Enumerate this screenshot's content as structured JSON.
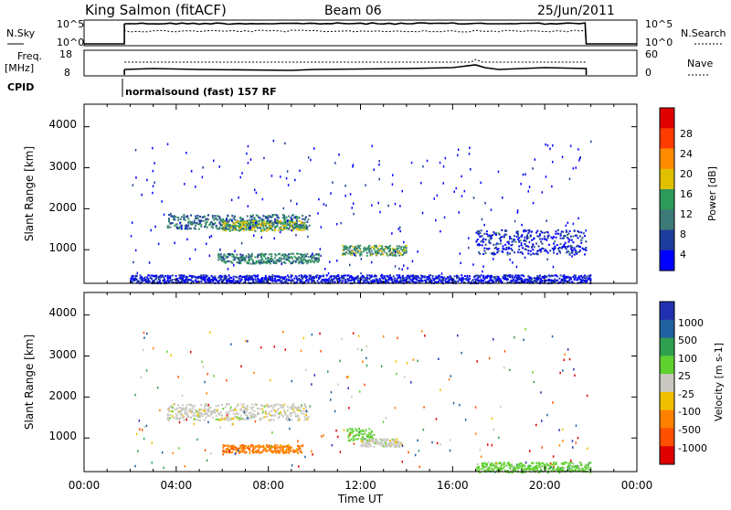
{
  "header": {
    "station": "King Salmon (fitACF)",
    "beam": "Beam 06",
    "date": "25/Jun/2011",
    "nsky_label": "N.Sky",
    "nsearch_label": "N.Search",
    "freq_label_1": "Freq.",
    "freq_label_2": "[MHz]",
    "nave_label": "Nave",
    "cpid_label": "CPID",
    "cpid_value": "normalsound (fast) 157 RF",
    "noise_ticks_left": [
      "10^5",
      "10^0"
    ],
    "noise_ticks_right": [
      "10^5",
      "10^0"
    ],
    "freq_ticks": [
      "18",
      "8"
    ],
    "nave_ticks": [
      "60",
      "0"
    ]
  },
  "colors": {
    "power_scale": [
      "#0000ff",
      "#1e3c9c",
      "#3c7a78",
      "#2e9a5a",
      "#e0c000",
      "#ff8c00",
      "#ff3c00",
      "#e00000"
    ],
    "velocity_scale": [
      "#2030b0",
      "#2060a0",
      "#30a050",
      "#60d030",
      "#c8c8c0",
      "#f0c000",
      "#ff8000",
      "#ff5000",
      "#e00000"
    ]
  },
  "chart_data": [
    {
      "type": "heatmap",
      "title": "Power",
      "xlabel": "",
      "ylabel": "Slant Range [km]",
      "ylim": [
        180,
        4550
      ],
      "yticks": [
        "4000",
        "3000",
        "2000",
        "1000"
      ],
      "colorbar_label": "Power [dB]",
      "colorbar_ticks": [
        "28",
        "24",
        "20",
        "16",
        "12",
        "8",
        "4"
      ],
      "colorbar_range": [
        0,
        32
      ],
      "regions": [
        {
          "t_start": 3.6,
          "t_end": 9.8,
          "r_center": 1700,
          "r_width": 350,
          "level": 10
        },
        {
          "t_start": 6.0,
          "t_end": 9.6,
          "r_center": 1600,
          "r_width": 250,
          "level": 16
        },
        {
          "t_start": 5.8,
          "t_end": 10.2,
          "r_center": 800,
          "r_width": 250,
          "level": 12
        },
        {
          "t_start": 11.2,
          "t_end": 14.0,
          "r_center": 1000,
          "r_width": 250,
          "level": 14
        },
        {
          "t_start": 17.0,
          "t_end": 21.8,
          "r_center": 1200,
          "r_width": 600,
          "level": 5
        },
        {
          "t_start": 2.0,
          "t_end": 22.0,
          "r_center": 300,
          "r_width": 200,
          "level": 4
        }
      ]
    },
    {
      "type": "heatmap",
      "title": "Velocity",
      "xlabel": "Time UT",
      "ylabel": "Slant Range [km]",
      "ylim": [
        180,
        4550
      ],
      "yticks": [
        "4000",
        "3000",
        "2000",
        "1000"
      ],
      "xticks": [
        "00:00",
        "04:00",
        "08:00",
        "12:00",
        "16:00",
        "20:00",
        "00:00"
      ],
      "xlim": [
        0,
        24
      ],
      "colorbar_label": "Velocity [m s-1]",
      "colorbar_ticks": [
        "1000",
        "500",
        "100",
        "25",
        "-25",
        "-100",
        "-500",
        "-1000"
      ],
      "regions": [
        {
          "t_start": 3.6,
          "t_end": 9.8,
          "r_center": 1650,
          "r_width": 400,
          "level": "-25..25"
        },
        {
          "t_start": 6.0,
          "t_end": 9.5,
          "r_center": 750,
          "r_width": 200,
          "level": "-100..-500"
        },
        {
          "t_start": 11.4,
          "t_end": 12.6,
          "r_center": 1100,
          "r_width": 300,
          "level": "25..100"
        },
        {
          "t_start": 12.0,
          "t_end": 13.8,
          "r_center": 900,
          "r_width": 200,
          "level": "-25..25"
        },
        {
          "t_start": 17.0,
          "t_end": 22.0,
          "r_center": 300,
          "r_width": 250,
          "level": "25..100"
        }
      ]
    }
  ]
}
